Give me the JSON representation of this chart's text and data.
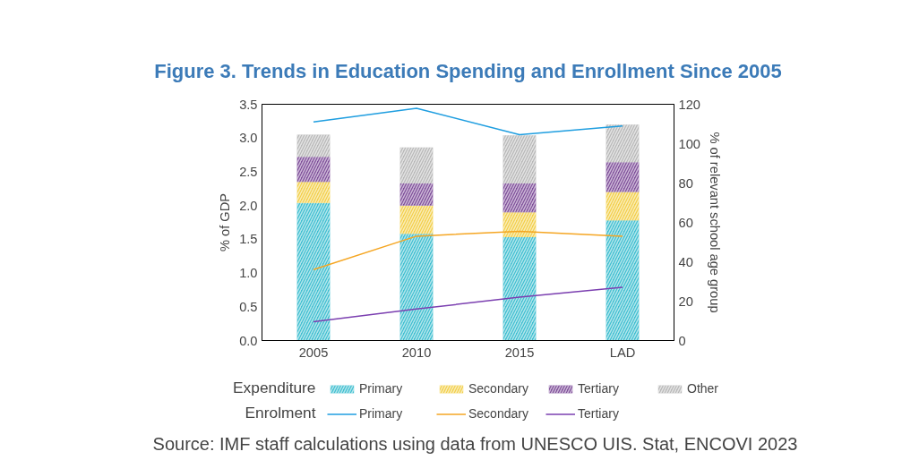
{
  "chart_data": {
    "type": "bar",
    "title": "Figure 3. Trends in Education Spending and Enrollment Since 2005",
    "categories": [
      "2005",
      "2010",
      "2015",
      "LAD"
    ],
    "stacked": true,
    "series": [
      {
        "name": "Primary",
        "color": "#40bfd0",
        "values": [
          2.04,
          1.58,
          1.53,
          1.78
        ]
      },
      {
        "name": "Secondary",
        "color": "#f2cf4a",
        "values": [
          0.31,
          0.42,
          0.37,
          0.42
        ]
      },
      {
        "name": "Tertiary",
        "color": "#7f4f9a",
        "values": [
          0.37,
          0.33,
          0.43,
          0.44
        ]
      },
      {
        "name": "Other",
        "color": "#b8b8b8",
        "values": [
          0.33,
          0.53,
          0.71,
          0.56
        ]
      },
      {
        "name": "Primary",
        "type": "line",
        "axis": "y2",
        "color": "#1f9ee0",
        "values": [
          111,
          118,
          104.5,
          109
        ]
      },
      {
        "name": "Secondary",
        "type": "line",
        "axis": "y2",
        "color": "#f5a623",
        "values": [
          36,
          53,
          55.5,
          53
        ]
      },
      {
        "name": "Tertiary",
        "type": "line",
        "axis": "y2",
        "color": "#7b3fb0",
        "values": [
          9.5,
          16,
          22,
          27
        ]
      }
    ],
    "ylabel": "% of GDP",
    "y2label": "% of relevant school age group",
    "ylim": [
      0,
      3.5
    ],
    "yticks": [
      {
        "value": 0,
        "label": "0.0"
      },
      0.5,
      {
        "value": 1,
        "label": "1.0"
      },
      1.5,
      {
        "value": 2,
        "label": "2.0"
      },
      2.5,
      {
        "value": 3,
        "label": "3.0"
      },
      3.5
    ],
    "y2lim": [
      0,
      120
    ],
    "y2ticks": [
      0,
      20,
      40,
      60,
      80,
      100,
      120
    ],
    "legend": "bottom",
    "legend_title": [
      "Expenditure",
      "Enrolment"
    ],
    "annotations": [
      "Source: IMF staff calculations using data from UNESCO UIS. Stat, ENCOVI 2023"
    ]
  }
}
